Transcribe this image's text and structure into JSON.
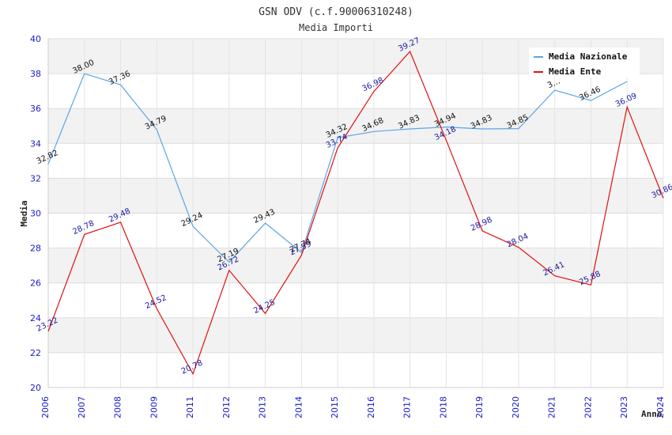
{
  "chart_data": {
    "type": "line",
    "title": "GSN ODV (c.f.90006310248)",
    "subtitle": "Media Importi",
    "xlabel": "Anno",
    "ylabel": "Media",
    "ylim": [
      20,
      40
    ],
    "yticks": [
      20,
      22,
      24,
      26,
      28,
      30,
      32,
      34,
      36,
      38,
      40
    ],
    "x": [
      "2006",
      "2007",
      "2008",
      "2009",
      "2011",
      "2012",
      "2013",
      "2014",
      "2015",
      "2016",
      "2017",
      "2018",
      "2019",
      "2020",
      "2021",
      "2022",
      "2023",
      "2024"
    ],
    "legend_position": "top-right",
    "grid": true,
    "series": [
      {
        "name": "Media Nazionale",
        "color": "#5aa5e6",
        "values": [
          32.82,
          38.0,
          37.36,
          34.79,
          29.24,
          27.19,
          29.43,
          27.74,
          34.32,
          34.68,
          34.83,
          34.94,
          34.83,
          34.85,
          37.05,
          36.46,
          37.55,
          null
        ],
        "labels": [
          "32.82",
          "38.00",
          "37.36",
          "34.79",
          "29.24",
          "27.19",
          "29.43",
          "27.74",
          "34.32",
          "34.68",
          "34.83",
          "34.94",
          "34.83",
          "34.85",
          "3…",
          "36.46",
          "",
          ""
        ]
      },
      {
        "name": "Media Ente",
        "color": "#e01010",
        "values": [
          23.22,
          28.78,
          29.48,
          24.52,
          20.78,
          26.72,
          24.25,
          27.59,
          33.74,
          36.98,
          39.27,
          34.18,
          28.98,
          28.04,
          26.41,
          25.88,
          36.09,
          30.86
        ],
        "labels": [
          "23.22",
          "28.78",
          "29.48",
          "24.52",
          "20.78",
          "26.72",
          "24.25",
          "27.59",
          "33.74",
          "36.98",
          "39.27",
          "34.18",
          "28.98",
          "28.04",
          "26.41",
          "25.88",
          "36.09",
          "30.86"
        ]
      }
    ]
  }
}
